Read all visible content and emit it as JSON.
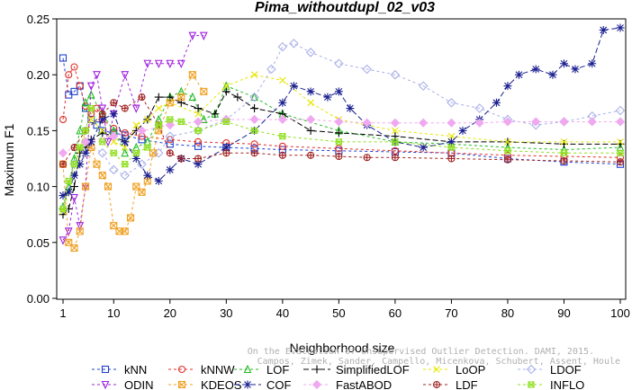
{
  "chart_data": {
    "type": "line",
    "title": "Pima_withoutdupl_02_v03",
    "xlabel": "Neighborhood size",
    "ylabel": "Maximum F1",
    "xlim": [
      1,
      100
    ],
    "ylim": [
      0,
      0.25
    ],
    "x_ticks": [
      1,
      10,
      20,
      30,
      40,
      50,
      60,
      70,
      80,
      90,
      100
    ],
    "y_ticks": [
      "0.00",
      "0.05",
      "0.10",
      "0.15",
      "0.20",
      "0.25"
    ],
    "grid": false,
    "legend_position": "bottom",
    "watermark": [
      "Campos, Zimek, Sander, Campello, Micenkova, Schubert, Assent, Houle",
      "On the Evaluation of Unsupervised Outlier Detection. DAMI, 2015."
    ],
    "series": [
      {
        "name": "kNN",
        "color": "#1f3fd0",
        "marker": "square",
        "dash": "3,3",
        "x": [
          1,
          2,
          3,
          4,
          5,
          6,
          7,
          8,
          10,
          12,
          15,
          20,
          25,
          30,
          35,
          40,
          50,
          60,
          70,
          80,
          90,
          100
        ],
        "values": [
          0.215,
          0.182,
          0.185,
          0.19,
          0.17,
          0.16,
          0.155,
          0.15,
          0.148,
          0.146,
          0.142,
          0.138,
          0.136,
          0.135,
          0.134,
          0.133,
          0.132,
          0.131,
          0.13,
          0.125,
          0.122,
          0.12
        ]
      },
      {
        "name": "kNNW",
        "color": "#e0302a",
        "marker": "circle",
        "dash": "3,3",
        "x": [
          1,
          2,
          3,
          4,
          5,
          6,
          7,
          8,
          10,
          12,
          15,
          20,
          25,
          30,
          35,
          40,
          50,
          60,
          70,
          80,
          90,
          100
        ],
        "values": [
          0.16,
          0.2,
          0.207,
          0.19,
          0.172,
          0.165,
          0.17,
          0.16,
          0.152,
          0.148,
          0.145,
          0.142,
          0.14,
          0.139,
          0.138,
          0.136,
          0.134,
          0.132,
          0.13,
          0.128,
          0.127,
          0.126
        ]
      },
      {
        "name": "LOF",
        "color": "#22bb22",
        "marker": "triangle-up",
        "dash": "3,3",
        "x": [
          1,
          2,
          3,
          4,
          5,
          6,
          8,
          10,
          12,
          14,
          16,
          18,
          20,
          22,
          24,
          26,
          28,
          30,
          35,
          40,
          50,
          60,
          70,
          80,
          90,
          100
        ],
        "values": [
          0.082,
          0.1,
          0.125,
          0.15,
          0.175,
          0.182,
          0.165,
          0.15,
          0.13,
          0.135,
          0.14,
          0.16,
          0.18,
          0.185,
          0.18,
          0.16,
          0.165,
          0.19,
          0.18,
          0.165,
          0.15,
          0.14,
          0.138,
          0.135,
          0.133,
          0.135
        ]
      },
      {
        "name": "SimplifiedLOF",
        "color": "#000000",
        "marker": "plus",
        "dash": "6,3",
        "x": [
          1,
          2,
          3,
          4,
          5,
          6,
          8,
          10,
          12,
          14,
          16,
          18,
          20,
          22,
          25,
          28,
          30,
          32,
          35,
          40,
          45,
          50,
          60,
          70,
          80,
          90,
          100
        ],
        "values": [
          0.075,
          0.08,
          0.1,
          0.13,
          0.135,
          0.142,
          0.148,
          0.145,
          0.14,
          0.15,
          0.16,
          0.18,
          0.18,
          0.175,
          0.17,
          0.165,
          0.185,
          0.18,
          0.17,
          0.165,
          0.15,
          0.148,
          0.145,
          0.14,
          0.14,
          0.138,
          0.138
        ]
      },
      {
        "name": "LoOP",
        "color": "#e6e600",
        "marker": "x",
        "dash": "3,3",
        "x": [
          1,
          2,
          4,
          6,
          8,
          10,
          12,
          14,
          16,
          18,
          20,
          25,
          30,
          35,
          40,
          45,
          50,
          60,
          70,
          80,
          90,
          100
        ],
        "values": [
          0.078,
          0.095,
          0.135,
          0.16,
          0.15,
          0.14,
          0.135,
          0.155,
          0.16,
          0.17,
          0.175,
          0.165,
          0.19,
          0.2,
          0.195,
          0.175,
          0.16,
          0.15,
          0.145,
          0.14,
          0.14,
          0.14
        ]
      },
      {
        "name": "LDOF",
        "color": "#aab0e8",
        "marker": "diamond",
        "dash": "3,3",
        "x": [
          1,
          3,
          5,
          8,
          10,
          12,
          15,
          18,
          20,
          25,
          30,
          35,
          38,
          40,
          42,
          45,
          50,
          55,
          60,
          65,
          70,
          75,
          80,
          85,
          90,
          95,
          100
        ],
        "values": [
          0.08,
          0.12,
          0.14,
          0.13,
          0.115,
          0.11,
          0.12,
          0.13,
          0.145,
          0.15,
          0.16,
          0.18,
          0.205,
          0.225,
          0.228,
          0.22,
          0.21,
          0.205,
          0.2,
          0.19,
          0.175,
          0.17,
          0.16,
          0.155,
          0.158,
          0.163,
          0.168
        ]
      },
      {
        "name": "ODIN",
        "color": "#a020e0",
        "marker": "triangle-down",
        "dash": "3,3",
        "x": [
          1,
          2,
          3,
          4,
          5,
          6,
          7,
          8,
          9,
          10,
          12,
          14,
          16,
          18,
          20,
          22,
          24,
          26
        ],
        "values": [
          0.052,
          0.06,
          0.09,
          0.065,
          0.1,
          0.19,
          0.2,
          0.17,
          0.14,
          0.165,
          0.2,
          0.17,
          0.21,
          0.21,
          0.21,
          0.21,
          0.235,
          0.235
        ]
      },
      {
        "name": "KDEOS",
        "color": "#f0a020",
        "marker": "square-x",
        "dash": "3,3",
        "x": [
          1,
          2,
          3,
          4,
          5,
          6,
          7,
          8,
          9,
          10,
          11,
          12,
          13,
          14,
          15,
          16,
          17,
          18,
          20,
          22,
          24,
          26
        ],
        "values": [
          0.12,
          0.05,
          0.045,
          0.06,
          0.1,
          0.135,
          0.12,
          0.11,
          0.1,
          0.065,
          0.06,
          0.06,
          0.072,
          0.1,
          0.095,
          0.105,
          0.13,
          0.15,
          0.175,
          0.18,
          0.2,
          0.185
        ]
      },
      {
        "name": "COF",
        "color": "#1a2090",
        "marker": "asterisk",
        "dash": "6,3",
        "x": [
          1,
          2,
          3,
          4,
          5,
          6,
          8,
          10,
          12,
          14,
          16,
          18,
          20,
          22,
          25,
          30,
          35,
          40,
          42,
          45,
          48,
          50,
          52,
          55,
          60,
          65,
          70,
          72,
          75,
          78,
          80,
          82,
          85,
          88,
          90,
          92,
          95,
          97,
          100
        ],
        "values": [
          0.092,
          0.095,
          0.11,
          0.12,
          0.13,
          0.14,
          0.16,
          0.165,
          0.14,
          0.125,
          0.11,
          0.105,
          0.115,
          0.125,
          0.12,
          0.135,
          0.15,
          0.175,
          0.19,
          0.185,
          0.18,
          0.185,
          0.17,
          0.155,
          0.14,
          0.135,
          0.14,
          0.15,
          0.16,
          0.175,
          0.19,
          0.2,
          0.205,
          0.2,
          0.21,
          0.205,
          0.21,
          0.24,
          0.242
        ]
      },
      {
        "name": "FastABOD",
        "color": "#f0a8f0",
        "marker": "diamond-filled",
        "dash": "3,3",
        "x": [
          1,
          5,
          10,
          15,
          20,
          25,
          30,
          35,
          40,
          45,
          50,
          55,
          60,
          65,
          70,
          75,
          80,
          85,
          90,
          95,
          100
        ],
        "values": [
          0.13,
          0.14,
          0.145,
          0.15,
          0.155,
          0.158,
          0.16,
          0.16,
          0.16,
          0.16,
          0.158,
          0.157,
          0.157,
          0.157,
          0.157,
          0.157,
          0.158,
          0.158,
          0.158,
          0.158,
          0.158
        ]
      },
      {
        "name": "LDF",
        "color": "#a02020",
        "marker": "circle-plus",
        "dash": "3,3",
        "x": [
          1,
          3,
          5,
          8,
          10,
          12,
          15,
          18,
          20,
          22,
          25,
          30,
          35,
          40,
          45,
          50,
          55,
          60,
          70,
          80,
          90,
          100
        ],
        "values": [
          0.12,
          0.135,
          0.15,
          0.165,
          0.175,
          0.17,
          0.18,
          0.155,
          0.13,
          0.125,
          0.125,
          0.13,
          0.13,
          0.128,
          0.128,
          0.127,
          0.126,
          0.126,
          0.125,
          0.124,
          0.123,
          0.122
        ]
      },
      {
        "name": "INFLO",
        "color": "#90e020",
        "marker": "star",
        "dash": "3,3",
        "x": [
          1,
          2,
          3,
          4,
          5,
          6,
          8,
          10,
          12,
          14,
          16,
          18,
          20,
          22,
          25,
          30,
          35,
          40,
          50,
          60,
          70,
          80,
          90,
          100
        ],
        "values": [
          0.08,
          0.105,
          0.12,
          0.135,
          0.15,
          0.17,
          0.14,
          0.13,
          0.12,
          0.13,
          0.135,
          0.155,
          0.16,
          0.158,
          0.15,
          0.158,
          0.15,
          0.145,
          0.14,
          0.14,
          0.135,
          0.132,
          0.13,
          0.13
        ]
      }
    ]
  }
}
